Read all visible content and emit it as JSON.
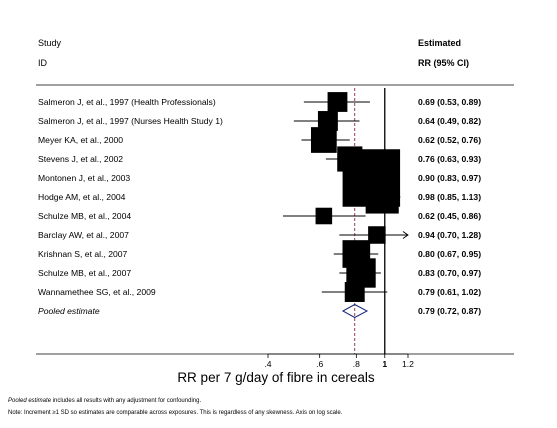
{
  "chart_data": {
    "type": "forest",
    "header": {
      "study_line1": "Study",
      "study_line2": "ID",
      "estimate_line1": "Estimated",
      "estimate_line2": "RR (95% CI)"
    },
    "studies": [
      {
        "label": "Salmeron J, et al., 1997 (Health Professionals)",
        "rr": 0.69,
        "lo": 0.53,
        "hi": 0.89,
        "text": "0.69 (0.53, 0.89)"
      },
      {
        "label": "Salmeron J, et al., 1997 (Nurses Health Study 1)",
        "rr": 0.64,
        "lo": 0.49,
        "hi": 0.82,
        "text": "0.64 (0.49, 0.82)"
      },
      {
        "label": "Meyer KA, et al., 2000",
        "rr": 0.62,
        "lo": 0.52,
        "hi": 0.76,
        "text": "0.62 (0.52, 0.76)"
      },
      {
        "label": "Stevens J, et al., 2002",
        "rr": 0.76,
        "lo": 0.63,
        "hi": 0.93,
        "text": "0.76 (0.63, 0.93)"
      },
      {
        "label": "Montonen J, et al., 2003",
        "rr": 0.9,
        "lo": 0.83,
        "hi": 0.97,
        "text": "0.90 (0.83, 0.97)"
      },
      {
        "label": "Hodge AM, et al., 2004",
        "rr": 0.98,
        "lo": 0.85,
        "hi": 1.13,
        "text": "0.98 (0.85, 1.13)"
      },
      {
        "label": "Schulze MB, et al., 2004",
        "rr": 0.62,
        "lo": 0.45,
        "hi": 0.86,
        "text": "0.62 (0.45, 0.86)"
      },
      {
        "label": "Barclay AW, et al., 2007",
        "rr": 0.94,
        "lo": 0.7,
        "hi": 1.28,
        "text": "0.94 (0.70, 1.28)"
      },
      {
        "label": "Krishnan S, et al., 2007",
        "rr": 0.8,
        "lo": 0.67,
        "hi": 0.95,
        "text": "0.80 (0.67, 0.95)"
      },
      {
        "label": "Schulze MB, et al., 2007",
        "rr": 0.83,
        "lo": 0.7,
        "hi": 0.97,
        "text": "0.83 (0.70, 0.97)"
      },
      {
        "label": "Wannamethee SG, et al., 2009",
        "rr": 0.79,
        "lo": 0.61,
        "hi": 1.02,
        "text": "0.79 (0.61, 1.02)"
      }
    ],
    "pooled": {
      "label": "Pooled estimate",
      "rr": 0.79,
      "lo": 0.72,
      "hi": 0.87,
      "text": "0.79 (0.72, 0.87)"
    },
    "x_axis": {
      "scale": "log",
      "ticks": [
        0.4,
        0.6,
        0.8,
        1,
        1.2
      ],
      "tick_labels": [
        ".4",
        ".6",
        ".8",
        "1",
        "1.2"
      ],
      "bold_ticks": [
        1
      ],
      "xlim": [
        0.4,
        1.2
      ],
      "xlabel": "RR per 7 g/day of fibre in cereals"
    },
    "reference_line": 1,
    "pooled_line": 0.79,
    "clip_max": 1.2,
    "colors": {
      "text": "#000000",
      "pooled_line": "#8a2a3a",
      "marker": "#000000"
    },
    "footnote_1_emph": "Pooled estimate",
    "footnote_1_rest": " includes all results with any adjustment for confounding.",
    "footnote_2": "Note: Increment ≥1 SD so estimates are comparable across exposures. This is regardless of any skewness. Axis on log scale."
  }
}
